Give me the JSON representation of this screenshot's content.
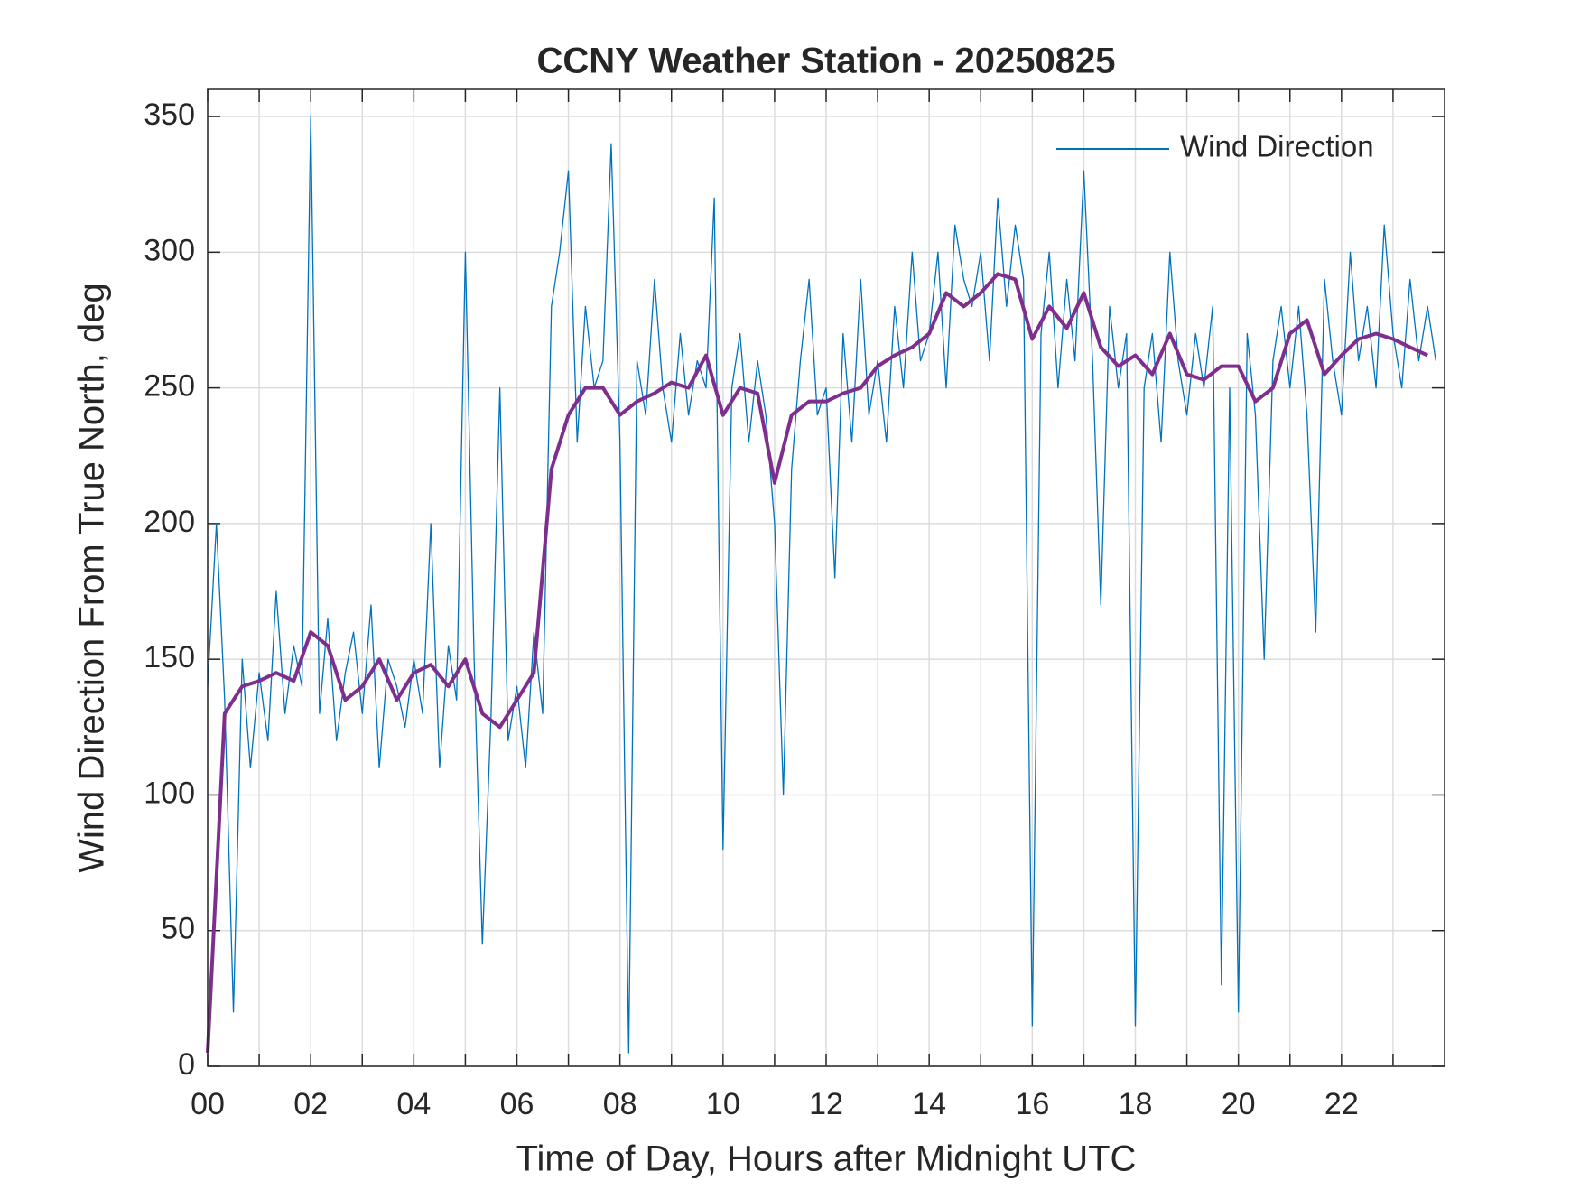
{
  "chart_data": {
    "type": "line",
    "title": "CCNY Weather Station - 20250825",
    "xlabel": "Time of Day, Hours after Midnight UTC",
    "ylabel": "Wind Direction From True North, deg",
    "xlim": [
      0,
      24
    ],
    "ylim": [
      0,
      360
    ],
    "xticks": [
      {
        "value": 0,
        "label": "00"
      },
      {
        "value": 2,
        "label": "02"
      },
      {
        "value": 4,
        "label": "04"
      },
      {
        "value": 6,
        "label": "06"
      },
      {
        "value": 8,
        "label": "08"
      },
      {
        "value": 10,
        "label": "10"
      },
      {
        "value": 12,
        "label": "12"
      },
      {
        "value": 14,
        "label": "14"
      },
      {
        "value": 16,
        "label": "16"
      },
      {
        "value": 18,
        "label": "18"
      },
      {
        "value": 20,
        "label": "20"
      },
      {
        "value": 22,
        "label": "22"
      }
    ],
    "minor_xticks": [
      1,
      3,
      5,
      7,
      9,
      11,
      13,
      15,
      17,
      19,
      21,
      23
    ],
    "yticks": [
      0,
      50,
      100,
      150,
      200,
      250,
      300,
      350
    ],
    "grid": true,
    "legend": "upper right",
    "series": [
      {
        "name": "Wind Direction",
        "color": "#0072bd",
        "line_width": 1.3,
        "x": [
          0,
          0.17,
          0.33,
          0.5,
          0.67,
          0.83,
          1,
          1.17,
          1.33,
          1.5,
          1.67,
          1.83,
          2,
          2.17,
          2.33,
          2.5,
          2.67,
          2.83,
          3,
          3.17,
          3.33,
          3.5,
          3.67,
          3.83,
          4,
          4.17,
          4.33,
          4.5,
          4.67,
          4.83,
          5,
          5.17,
          5.33,
          5.5,
          5.67,
          5.83,
          6,
          6.17,
          6.33,
          6.5,
          6.67,
          6.83,
          7,
          7.17,
          7.33,
          7.5,
          7.67,
          7.83,
          8,
          8.17,
          8.33,
          8.5,
          8.67,
          8.83,
          9,
          9.17,
          9.33,
          9.5,
          9.67,
          9.83,
          10,
          10.17,
          10.33,
          10.5,
          10.67,
          10.83,
          11,
          11.17,
          11.33,
          11.5,
          11.67,
          11.83,
          12,
          12.17,
          12.33,
          12.5,
          12.67,
          12.83,
          13,
          13.17,
          13.33,
          13.5,
          13.67,
          13.83,
          14,
          14.17,
          14.33,
          14.5,
          14.67,
          14.83,
          15,
          15.17,
          15.33,
          15.5,
          15.67,
          15.83,
          16,
          16.17,
          16.33,
          16.5,
          16.67,
          16.83,
          17,
          17.17,
          17.33,
          17.5,
          17.67,
          17.83,
          18,
          18.17,
          18.33,
          18.5,
          18.67,
          18.83,
          19,
          19.17,
          19.33,
          19.5,
          19.67,
          19.83,
          20,
          20.17,
          20.33,
          20.5,
          20.67,
          20.83,
          21,
          21.17,
          21.33,
          21.5,
          21.67,
          21.83,
          22,
          22.17,
          22.33,
          22.5,
          22.67,
          22.83,
          23,
          23.17,
          23.33,
          23.5,
          23.67,
          23.83
        ],
        "values": [
          140,
          200,
          135,
          20,
          150,
          110,
          145,
          120,
          175,
          130,
          155,
          140,
          350,
          130,
          165,
          120,
          145,
          160,
          130,
          170,
          110,
          150,
          140,
          125,
          150,
          130,
          200,
          110,
          155,
          135,
          300,
          150,
          45,
          130,
          250,
          120,
          140,
          110,
          160,
          130,
          280,
          300,
          330,
          230,
          280,
          250,
          260,
          340,
          230,
          5,
          260,
          240,
          290,
          250,
          230,
          270,
          240,
          260,
          250,
          320,
          80,
          250,
          270,
          230,
          260,
          240,
          200,
          100,
          220,
          260,
          290,
          240,
          250,
          180,
          270,
          230,
          290,
          240,
          260,
          230,
          280,
          250,
          300,
          260,
          270,
          300,
          250,
          310,
          290,
          280,
          300,
          260,
          320,
          280,
          310,
          290,
          15,
          270,
          300,
          250,
          290,
          260,
          330,
          260,
          170,
          280,
          250,
          270,
          15,
          250,
          270,
          230,
          300,
          260,
          240,
          270,
          250,
          280,
          30,
          250,
          20,
          270,
          240,
          150,
          260,
          280,
          250,
          280,
          240,
          160,
          290,
          260,
          240,
          300,
          260,
          280,
          250,
          310,
          270,
          250,
          290,
          260,
          280,
          260
        ]
      },
      {
        "color": "#7e2f8e",
        "line_width": 4,
        "x": [
          0,
          0.33,
          0.67,
          1,
          1.33,
          1.67,
          2,
          2.33,
          2.67,
          3,
          3.33,
          3.67,
          4,
          4.33,
          4.67,
          5,
          5.33,
          5.67,
          6,
          6.33,
          6.67,
          7,
          7.33,
          7.67,
          8,
          8.33,
          8.67,
          9,
          9.33,
          9.67,
          10,
          10.33,
          10.67,
          11,
          11.33,
          11.67,
          12,
          12.33,
          12.67,
          13,
          13.33,
          13.67,
          14,
          14.33,
          14.67,
          15,
          15.33,
          15.67,
          16,
          16.33,
          16.67,
          17,
          17.33,
          17.67,
          18,
          18.33,
          18.67,
          19,
          19.33,
          19.67,
          20,
          20.33,
          20.67,
          21,
          21.33,
          21.67,
          22,
          22.33,
          22.67,
          23,
          23.33,
          23.67
        ],
        "values": [
          5,
          130,
          140,
          142,
          145,
          142,
          160,
          155,
          135,
          140,
          150,
          135,
          145,
          148,
          140,
          150,
          130,
          125,
          135,
          145,
          220,
          240,
          250,
          250,
          240,
          245,
          248,
          252,
          250,
          262,
          240,
          250,
          248,
          215,
          240,
          245,
          245,
          248,
          250,
          258,
          262,
          265,
          270,
          285,
          280,
          285,
          292,
          290,
          268,
          280,
          272,
          285,
          265,
          258,
          262,
          255,
          270,
          255,
          253,
          258,
          258,
          245,
          250,
          270,
          275,
          255,
          262,
          268,
          270,
          268,
          265,
          262
        ]
      }
    ]
  }
}
